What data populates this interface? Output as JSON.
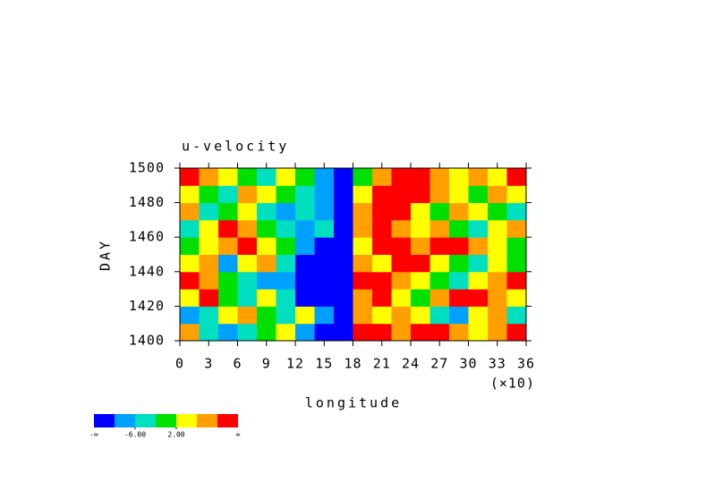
{
  "chart_data": {
    "type": "heatmap",
    "title": "u-velocity",
    "x_label": "longitude",
    "y_label": "DAY",
    "x_scale_label": "(×10)",
    "xlim": [
      0,
      36
    ],
    "xticks": [
      0,
      3,
      6,
      9,
      12,
      15,
      18,
      21,
      24,
      27,
      30,
      33,
      36
    ],
    "ylim": [
      1400,
      1500
    ],
    "yticks": [
      1400,
      1420,
      1440,
      1460,
      1480,
      1500
    ],
    "x": [
      1,
      3,
      5,
      7,
      9,
      11,
      13,
      15,
      17,
      19,
      21,
      23,
      25,
      27,
      29,
      31,
      33,
      35
    ],
    "y": [
      1405,
      1415,
      1425,
      1435,
      1445,
      1455,
      1465,
      1475,
      1485,
      1495
    ],
    "z": [
      [
        8,
        -4,
        -8,
        -4,
        0,
        4,
        -8,
        -12,
        -12,
        12,
        12,
        8,
        12,
        12,
        8,
        4,
        8,
        12
      ],
      [
        -8,
        -4,
        4,
        8,
        0,
        -4,
        4,
        -8,
        -12,
        8,
        4,
        8,
        4,
        -4,
        -8,
        4,
        8,
        -4
      ],
      [
        4,
        12,
        0,
        -4,
        4,
        -4,
        -12,
        -12,
        -12,
        8,
        12,
        4,
        0,
        8,
        12,
        12,
        8,
        4
      ],
      [
        12,
        8,
        0,
        -4,
        -8,
        -8,
        -12,
        -12,
        -12,
        12,
        12,
        8,
        4,
        0,
        -4,
        4,
        8,
        12
      ],
      [
        4,
        8,
        -8,
        4,
        8,
        -4,
        -12,
        -12,
        -12,
        8,
        4,
        12,
        12,
        4,
        0,
        -4,
        4,
        0
      ],
      [
        0,
        4,
        8,
        12,
        4,
        0,
        -8,
        -12,
        -12,
        4,
        12,
        12,
        8,
        12,
        12,
        8,
        4,
        0
      ],
      [
        -4,
        4,
        12,
        8,
        0,
        -4,
        -8,
        -4,
        -12,
        8,
        12,
        8,
        4,
        8,
        0,
        -4,
        4,
        8
      ],
      [
        8,
        -4,
        0,
        4,
        -4,
        -8,
        -4,
        -8,
        -12,
        8,
        12,
        12,
        4,
        0,
        8,
        4,
        0,
        -4
      ],
      [
        4,
        0,
        -4,
        8,
        4,
        0,
        -4,
        -8,
        -12,
        4,
        12,
        12,
        12,
        8,
        4,
        0,
        8,
        4
      ],
      [
        12,
        8,
        4,
        0,
        -4,
        4,
        0,
        -8,
        -12,
        0,
        8,
        12,
        12,
        8,
        4,
        8,
        4,
        12
      ]
    ],
    "levels": [
      -10,
      -6,
      -2,
      2,
      6,
      10
    ],
    "colors": [
      "#0000ff",
      "#00a0ff",
      "#00e0c0",
      "#00e000",
      "#ffff00",
      "#ffa000",
      "#ff0000"
    ],
    "colorbar_end_labels": [
      "-∞",
      "∞"
    ],
    "colorbar_ticks": [
      {
        "value": -6,
        "label": "-6.00"
      },
      {
        "value": 2,
        "label": "2.00"
      }
    ]
  }
}
